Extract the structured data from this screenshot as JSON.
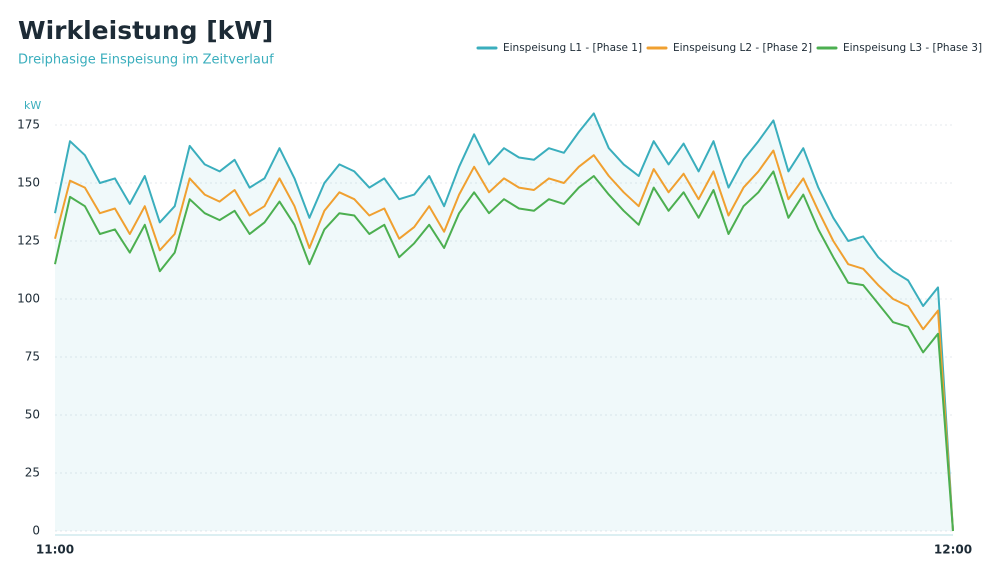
{
  "chart_data": {
    "type": "line",
    "title": "Wirkleistung [kW]",
    "subtitle": "Dreiphasige Einspeisung im Zeitverlauf",
    "y_unit": "kW",
    "x": [
      0,
      1,
      2,
      3,
      4,
      5,
      6,
      7,
      8,
      9,
      10,
      11,
      12,
      13,
      14,
      15,
      16,
      17,
      18,
      19,
      20,
      21,
      22,
      23,
      24,
      25,
      26,
      27,
      28,
      29,
      30,
      31,
      32,
      33,
      34,
      35,
      36,
      37,
      38,
      39,
      40,
      41,
      42,
      43,
      44,
      45,
      46,
      47,
      48,
      49,
      50,
      51,
      52,
      53,
      54,
      55,
      56,
      57,
      58,
      59,
      60
    ],
    "xlim": [
      0,
      60
    ],
    "xticks": [
      {
        "value": 0,
        "label": "11:00"
      },
      {
        "value": 60,
        "label": "12:00"
      }
    ],
    "ylim": [
      0,
      175
    ],
    "yticks": [
      0,
      25,
      50,
      75,
      100,
      125,
      150,
      175
    ],
    "grid": true,
    "legend": "top-right",
    "series": [
      {
        "name": "Einspeisung L1 - [Phase 1]",
        "color": "#3aaebd",
        "fill": true,
        "values": [
          137,
          168,
          162,
          150,
          152,
          141,
          153,
          133,
          140,
          166,
          158,
          155,
          160,
          148,
          152,
          165,
          152,
          135,
          150,
          158,
          155,
          148,
          152,
          143,
          145,
          153,
          140,
          157,
          171,
          158,
          165,
          161,
          160,
          165,
          163,
          172,
          180,
          165,
          158,
          153,
          168,
          158,
          167,
          155,
          168,
          148,
          160,
          168,
          177,
          155,
          165,
          148,
          135,
          125,
          127,
          118,
          112,
          108,
          97,
          105,
          0
        ]
      },
      {
        "name": "Einspeisung L2 - [Phase 2]",
        "color": "#f0a030",
        "values": [
          126,
          151,
          148,
          137,
          139,
          128,
          140,
          121,
          128,
          152,
          145,
          142,
          147,
          136,
          140,
          152,
          140,
          122,
          138,
          146,
          143,
          136,
          139,
          126,
          131,
          140,
          129,
          145,
          157,
          146,
          152,
          148,
          147,
          152,
          150,
          157,
          162,
          153,
          146,
          140,
          156,
          146,
          154,
          143,
          155,
          136,
          148,
          155,
          164,
          143,
          152,
          138,
          125,
          115,
          113,
          106,
          100,
          97,
          87,
          95,
          0
        ]
      },
      {
        "name": "Einspeisung L3 - [Phase 3]",
        "color": "#4caf50",
        "values": [
          115,
          144,
          140,
          128,
          130,
          120,
          132,
          112,
          120,
          143,
          137,
          134,
          138,
          128,
          133,
          142,
          132,
          115,
          130,
          137,
          136,
          128,
          132,
          118,
          124,
          132,
          122,
          137,
          146,
          137,
          143,
          139,
          138,
          143,
          141,
          148,
          153,
          145,
          138,
          132,
          148,
          138,
          146,
          135,
          147,
          128,
          140,
          146,
          155,
          135,
          145,
          130,
          118,
          107,
          106,
          98,
          90,
          88,
          77,
          85,
          0
        ]
      }
    ]
  }
}
